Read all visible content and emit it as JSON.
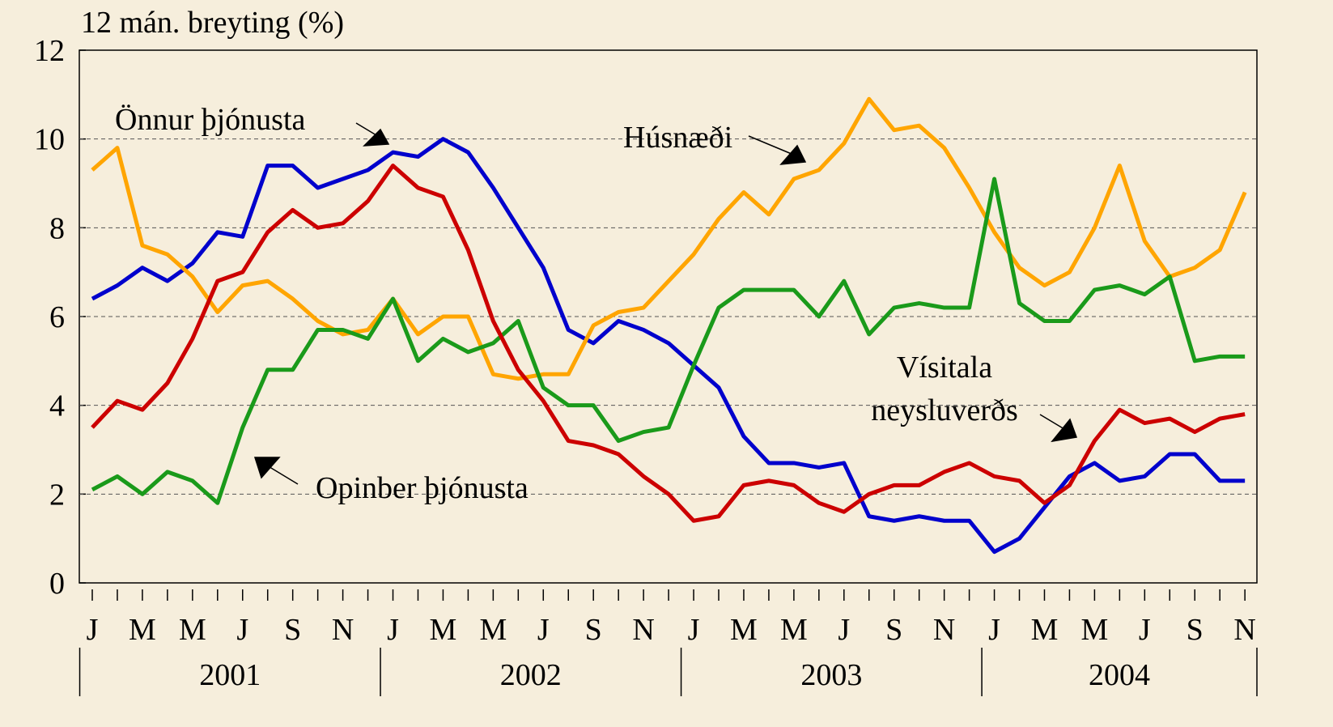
{
  "chart_data": {
    "type": "line",
    "y_label": "12 mán. breyting (%)",
    "categories": [
      "J",
      null,
      "M",
      null,
      "M",
      null,
      "J",
      null,
      "S",
      null,
      "N",
      null,
      "J",
      null,
      "M",
      null,
      "M",
      null,
      "J",
      null,
      "S",
      null,
      "N",
      null,
      "J",
      null,
      "M",
      null,
      "M",
      null,
      "J",
      null,
      "S",
      null,
      "N",
      null,
      "J",
      null,
      "M",
      null,
      "M",
      null,
      "J",
      null,
      "S",
      null,
      "N"
    ],
    "x_groups": [
      "2001",
      "2002",
      "2003",
      "2004"
    ],
    "ylim": [
      0,
      12
    ],
    "yticks": [
      0,
      2,
      4,
      6,
      8,
      10,
      12
    ],
    "grid": true,
    "series": [
      {
        "name": "Önnur þjónusta",
        "color": "#0000cc",
        "values": [
          6.4,
          6.7,
          7.1,
          6.8,
          7.2,
          7.9,
          7.8,
          9.4,
          9.4,
          8.9,
          9.1,
          9.3,
          9.7,
          9.6,
          10.0,
          9.7,
          8.9,
          8.0,
          7.1,
          5.7,
          5.4,
          5.9,
          5.7,
          5.4,
          4.9,
          4.4,
          3.3,
          2.7,
          2.7,
          2.6,
          2.7,
          1.5,
          1.4,
          1.5,
          1.4,
          1.4,
          0.7,
          1.0,
          1.7,
          2.4,
          2.7,
          2.3,
          2.4,
          2.9,
          2.9,
          2.3,
          2.3
        ]
      },
      {
        "name": "Húsnæði",
        "color": "#ffa500",
        "values": [
          9.3,
          9.8,
          7.6,
          7.4,
          6.9,
          6.1,
          6.7,
          6.8,
          6.4,
          5.9,
          5.6,
          5.7,
          6.4,
          5.6,
          6.0,
          6.0,
          4.7,
          4.6,
          4.7,
          4.7,
          5.8,
          6.1,
          6.2,
          6.8,
          7.4,
          8.2,
          8.8,
          8.3,
          9.1,
          9.3,
          9.9,
          10.9,
          10.2,
          10.3,
          9.8,
          8.9,
          7.9,
          7.1,
          6.7,
          7.0,
          8.0,
          9.4,
          7.7,
          6.9,
          7.1,
          7.5,
          8.8
        ]
      },
      {
        "name": "Opinber þjónusta",
        "color": "#1a9a1a",
        "values": [
          2.1,
          2.4,
          2.0,
          2.5,
          2.3,
          1.8,
          3.5,
          4.8,
          4.8,
          5.7,
          5.7,
          5.5,
          6.4,
          5.0,
          5.5,
          5.2,
          5.4,
          5.9,
          4.4,
          4.0,
          4.0,
          3.2,
          3.4,
          3.5,
          4.9,
          6.2,
          6.6,
          6.6,
          6.6,
          6.0,
          6.8,
          5.6,
          6.2,
          6.3,
          6.2,
          6.2,
          9.1,
          6.3,
          5.9,
          5.9,
          6.6,
          6.7,
          6.5,
          6.9,
          5.0,
          5.1,
          5.1
        ]
      },
      {
        "name": "Vísitala neysluverðs",
        "color": "#cc0000",
        "values": [
          3.5,
          4.1,
          3.9,
          4.5,
          5.5,
          6.8,
          7.0,
          7.9,
          8.4,
          8.0,
          8.1,
          8.6,
          9.4,
          8.9,
          8.7,
          7.5,
          5.9,
          4.8,
          4.1,
          3.2,
          3.1,
          2.9,
          2.4,
          2.0,
          1.4,
          1.5,
          2.2,
          2.3,
          2.2,
          1.8,
          1.6,
          2.0,
          2.2,
          2.2,
          2.5,
          2.7,
          2.4,
          2.3,
          1.8,
          2.2,
          3.2,
          3.9,
          3.6,
          3.7,
          3.4,
          3.7,
          3.8
        ]
      }
    ]
  }
}
